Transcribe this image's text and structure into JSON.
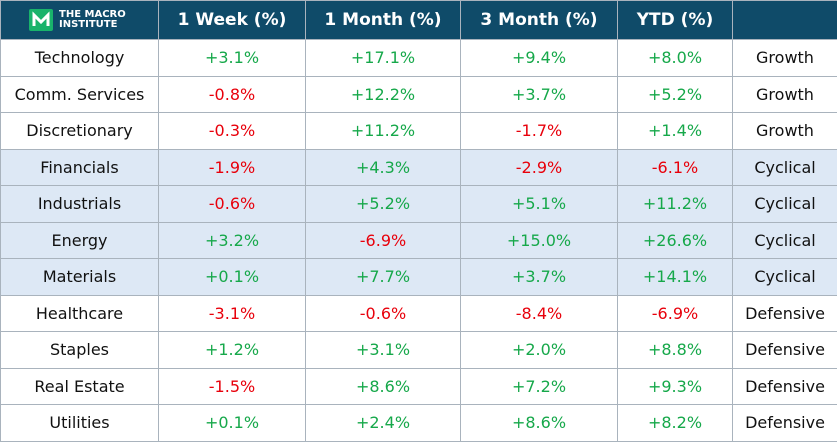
{
  "header": {
    "logo": {
      "line1": "THE MACRO",
      "line2": "INSTITUTE"
    },
    "columns": [
      "1 Week (%)",
      "1 Month (%)",
      "3 Month (%)",
      "YTD (%)"
    ],
    "background": "#0f4b69"
  },
  "table": {
    "positive_color": "#16a84a",
    "negative_color": "#e8000b",
    "rows": [
      {
        "background": "#ffffff",
        "cells": [
          "Technology",
          "+3.1%",
          "+17.1%",
          "+9.4%",
          "+8.0%",
          "Growth"
        ]
      },
      {
        "background": "#ffffff",
        "cells": [
          "Comm. Services",
          "-0.8%",
          "+12.2%",
          "+3.7%",
          "+5.2%",
          "Growth"
        ]
      },
      {
        "background": "#ffffff",
        "cells": [
          "Discretionary",
          "-0.3%",
          "+11.2%",
          "-1.7%",
          "+1.4%",
          "Growth"
        ]
      },
      {
        "background": "#dde8f5",
        "cells": [
          "Financials",
          "-1.9%",
          "+4.3%",
          "-2.9%",
          "-6.1%",
          "Cyclical"
        ]
      },
      {
        "background": "#dde8f5",
        "cells": [
          "Industrials",
          "-0.6%",
          "+5.2%",
          "+5.1%",
          "+11.2%",
          "Cyclical"
        ]
      },
      {
        "background": "#dde8f5",
        "cells": [
          "Energy",
          "+3.2%",
          "-6.9%",
          "+15.0%",
          "+26.6%",
          "Cyclical"
        ]
      },
      {
        "background": "#dde8f5",
        "cells": [
          "Materials",
          "+0.1%",
          "+7.7%",
          "+3.7%",
          "+14.1%",
          "Cyclical"
        ]
      },
      {
        "background": "#ffffff",
        "cells": [
          "Healthcare",
          "-3.1%",
          "-0.6%",
          "-8.4%",
          "-6.9%",
          "Defensive"
        ]
      },
      {
        "background": "#ffffff",
        "cells": [
          "Staples",
          "+1.2%",
          "+3.1%",
          "+2.0%",
          "+8.8%",
          "Defensive"
        ]
      },
      {
        "background": "#ffffff",
        "cells": [
          "Real Estate",
          "-1.5%",
          "+8.6%",
          "+7.2%",
          "+9.3%",
          "Defensive"
        ]
      },
      {
        "background": "#ffffff",
        "cells": [
          "Utilities",
          "+0.1%",
          "+2.4%",
          "+8.6%",
          "+8.2%",
          "Defensive"
        ]
      }
    ]
  }
}
